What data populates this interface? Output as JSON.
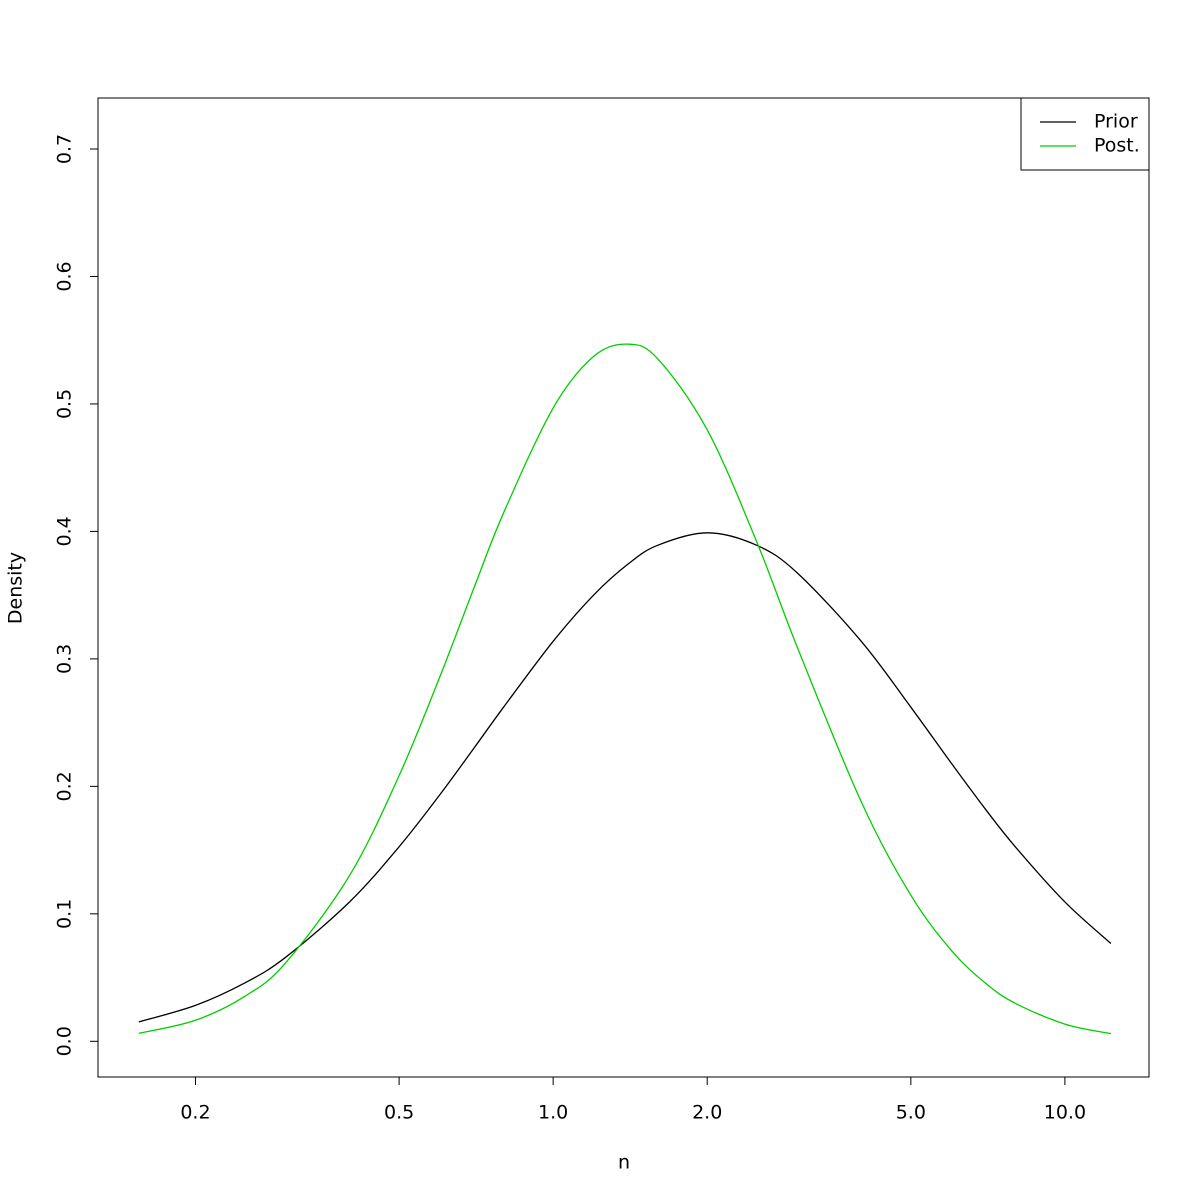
{
  "chart_data": {
    "type": "line",
    "xlabel": "n",
    "ylabel": "Density",
    "log_x": true,
    "x": [
      0.155,
      0.2,
      0.25,
      0.3,
      0.4,
      0.5,
      0.6,
      0.7,
      0.8,
      1.0,
      1.2,
      1.4,
      1.6,
      2.0,
      2.5,
      3,
      4,
      5,
      6,
      7,
      8,
      10,
      12.3
    ],
    "series": [
      {
        "name": "Prior",
        "color": "#000000",
        "values": [
          0.0152,
          0.0282,
          0.0459,
          0.0659,
          0.1093,
          0.1526,
          0.1932,
          0.2299,
          0.2621,
          0.3138,
          0.3501,
          0.3743,
          0.3891,
          0.3989,
          0.3891,
          0.3674,
          0.3138,
          0.2621,
          0.2181,
          0.1819,
          0.1526,
          0.1093,
          0.0767
        ]
      },
      {
        "name": "Post.",
        "color": "#00cd00",
        "values": [
          0.0062,
          0.0165,
          0.0354,
          0.0615,
          0.13,
          0.2084,
          0.2855,
          0.3555,
          0.4145,
          0.4968,
          0.5373,
          0.5469,
          0.5355,
          0.4797,
          0.3917,
          0.3091,
          0.1879,
          0.1146,
          0.0713,
          0.0455,
          0.0298,
          0.0135,
          0.006
        ]
      }
    ],
    "xlim": [
      0.129,
      14.6
    ],
    "xticks": [
      0.2,
      0.5,
      {
        "value": 1,
        "label": "1.0"
      },
      {
        "value": 2,
        "label": "2.0"
      },
      {
        "value": 5,
        "label": "5.0"
      },
      {
        "value": 10,
        "label": "10.0"
      }
    ],
    "ylim": [
      -0.028,
      0.74
    ],
    "yticks": [
      {
        "value": 0,
        "label": "0.0"
      },
      0.1,
      0.2,
      0.3,
      0.4,
      0.5,
      0.6,
      0.7
    ],
    "legend": "top-right"
  }
}
